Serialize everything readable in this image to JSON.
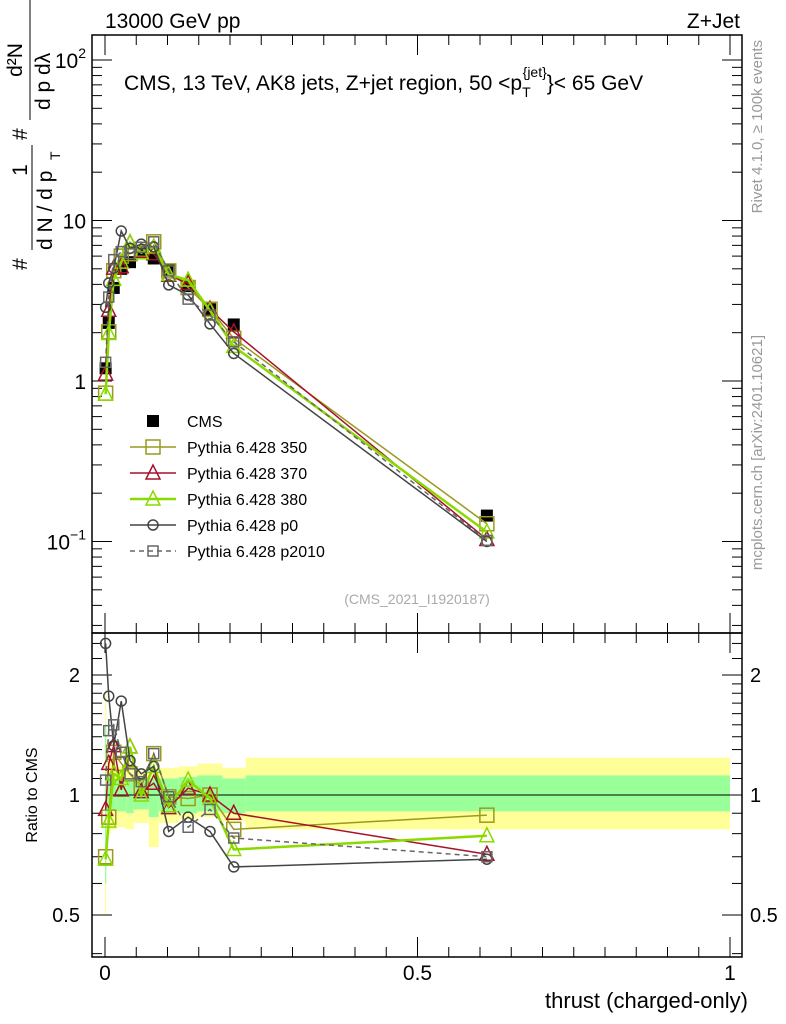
{
  "header": {
    "left": "13000 GeV pp",
    "right": "Z+Jet"
  },
  "side_labels": {
    "rivet": "Rivet 4.1.0, ≥ 100k events",
    "mcplots": "mcplots.cern.ch [arXiv:2401.10621]"
  },
  "analysis_id": "(CMS_2021_I1920187)",
  "chart_data": [
    {
      "type": "line",
      "title": "CMS, 13 TeV, AK8 jets, Z+jet region, 50 <p_T^{jet}< 65 GeV",
      "title_parts": {
        "pre": "CMS, 13 TeV, AK8 jets, Z+jet region, 50 <p",
        "sub": "T",
        "sup": "{jet}",
        "post": "}< 65 GeV"
      },
      "ylabel": "1/dN/dp_T  d²N/dp_T dλ",
      "ylabel_parts": {
        "num": "1",
        "den": "d N / d p",
        "num2": "d²N",
        "den2": "d p  dλ",
        "sub": "T",
        "hash": "#"
      },
      "yscale": "log",
      "ylim": [
        0.027,
        143
      ],
      "yticks": [
        {
          "v": 100,
          "label": "10",
          "exp": "2"
        },
        {
          "v": 10,
          "label": "10",
          "exp": ""
        },
        {
          "v": 1,
          "label": "1",
          "exp": ""
        },
        {
          "v": 0.1,
          "label": "10",
          "exp": "−1"
        }
      ],
      "xlim": [
        -0.02,
        1.02
      ],
      "x": [
        0.001,
        0.006,
        0.014,
        0.026,
        0.04,
        0.058,
        0.078,
        0.102,
        0.133,
        0.168,
        0.206,
        0.611
      ],
      "data": {
        "name": "CMS",
        "values": [
          1.2,
          2.3,
          3.8,
          5.0,
          5.5,
          6.3,
          5.8,
          4.9,
          3.9,
          2.8,
          2.25,
          0.145
        ]
      },
      "series": [
        {
          "name": "Pythia 6.428 350",
          "color": "#9a9a1e",
          "marker": "square",
          "dash": false,
          "ratio": [
            0.7,
            0.88,
            1.28,
            1.2,
            1.13,
            1.05,
            1.27,
            0.99,
            0.98,
            1.0,
            0.82,
            0.89
          ]
        },
        {
          "name": "Pythia 6.428 370",
          "color": "#a5122a",
          "marker": "triangle",
          "dash": false,
          "ratio": [
            0.92,
            1.2,
            1.33,
            1.03,
            1.32,
            1.02,
            1.07,
            0.93,
            1.04,
            1.0,
            0.9,
            0.71
          ]
        },
        {
          "name": "Pythia 6.428 380",
          "color": "#8ada00",
          "marker": "triangle",
          "dash": false,
          "ratio": [
            0.69,
            0.86,
            1.13,
            1.1,
            1.32,
            1.0,
            1.18,
            0.94,
            1.09,
            0.98,
            0.73,
            0.79
          ]
        },
        {
          "name": "Pythia 6.428 p0",
          "color": "#444444",
          "marker": "circle",
          "dash": false,
          "ratio": [
            2.4,
            1.77,
            1.33,
            1.72,
            1.22,
            1.13,
            1.18,
            0.81,
            0.88,
            0.81,
            0.66,
            0.69
          ]
        },
        {
          "name": "Pythia 6.428 p2010",
          "color": "#666666",
          "marker": "square-small",
          "dash": true,
          "ratio": [
            1.09,
            1.45,
            1.5,
            1.28,
            1.13,
            1.08,
            1.27,
            0.99,
            0.83,
            0.92,
            0.78,
            0.7
          ]
        }
      ]
    },
    {
      "type": "line",
      "ylabel": "Ratio to CMS",
      "xlabel": "thrust (charged-only)",
      "yscale": "log",
      "ylim": [
        0.39,
        2.55
      ],
      "yticks": [
        {
          "v": 2,
          "label": "2"
        },
        {
          "v": 1,
          "label": "1"
        },
        {
          "v": 0.5,
          "label": "0.5"
        }
      ],
      "xticks": [
        {
          "v": 0,
          "label": "0"
        },
        {
          "v": 0.5,
          "label": "0.5"
        },
        {
          "v": 1,
          "label": "1"
        }
      ],
      "band_edges": [
        0,
        0.002,
        0.01,
        0.018,
        0.034,
        0.046,
        0.07,
        0.086,
        0.118,
        0.148,
        0.188,
        0.225,
        1.0
      ],
      "band_total": [
        [
          0.5,
          1.8
        ],
        [
          0.8,
          1.25
        ],
        [
          0.82,
          1.2
        ],
        [
          0.83,
          1.18
        ],
        [
          0.82,
          1.2
        ],
        [
          0.85,
          1.15
        ],
        [
          0.74,
          1.15
        ],
        [
          0.85,
          1.17
        ],
        [
          0.87,
          1.18
        ],
        [
          0.88,
          1.2
        ],
        [
          0.86,
          1.17
        ],
        [
          0.82,
          1.24
        ]
      ],
      "band_stat": [
        [
          0.6,
          1.5
        ],
        [
          0.9,
          1.12
        ],
        [
          0.92,
          1.1
        ],
        [
          0.91,
          1.1
        ],
        [
          0.9,
          1.1
        ],
        [
          0.92,
          1.09
        ],
        [
          0.88,
          1.1
        ],
        [
          0.91,
          1.1
        ],
        [
          0.9,
          1.11
        ],
        [
          0.91,
          1.12
        ],
        [
          0.9,
          1.1
        ],
        [
          0.91,
          1.12
        ]
      ],
      "colors": {
        "total": "#ffff99",
        "stat": "#99ff99"
      }
    }
  ]
}
